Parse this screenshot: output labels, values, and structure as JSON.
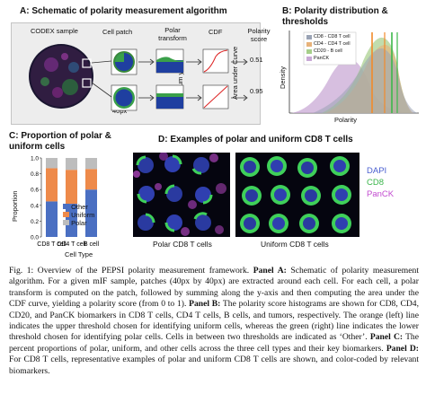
{
  "panel_a": {
    "title": "A: Schematic of polarity measurement algorithm",
    "codex_label": "CODEX sample",
    "cell_patch_label": "Cell patch",
    "polar_transform_label": "Polar transform",
    "cdf_label": "CDF",
    "polarity_score_label": "Polarity score",
    "sum_axis_label": "Sum y-axis",
    "area_label": "Area under Curve",
    "patch_size_label": "40px",
    "scores": [
      "0.51",
      "0.95"
    ]
  },
  "panel_b": {
    "title": "B: Polarity distribution & thresholds",
    "xlabel": "Polarity",
    "ylabel": "Density",
    "legend": [
      {
        "label": "CD8 - CD8 T cell",
        "color": "#9aa3b5"
      },
      {
        "label": "CD4 - CD4 T cell",
        "color": "#e7b27a"
      },
      {
        "label": "CD20 - B cell",
        "color": "#a6cf8a"
      },
      {
        "label": "PanCK",
        "color": "#c9a9d6"
      }
    ],
    "threshold_colors": {
      "upper": "#f28a2b",
      "lower": "#3cb84a"
    }
  },
  "panel_c": {
    "title": "C: Proportion of polar & uniform cells",
    "xlabel": "Cell Type",
    "ylabel": "Proportion",
    "yticks": [
      "0.0",
      "0.2",
      "0.4",
      "0.6",
      "0.8",
      "1.0"
    ],
    "legend": [
      "Other",
      "Uniform",
      "Polar"
    ],
    "chart_data": {
      "type": "bar",
      "categories": [
        "CD8 T cell",
        "CD4 T cell",
        "B cell"
      ],
      "series": [
        {
          "name": "Other",
          "values": [
            0.45,
            0.42,
            0.6
          ],
          "color": "#4a6fc2"
        },
        {
          "name": "Uniform",
          "values": [
            0.42,
            0.43,
            0.26
          ],
          "color": "#ee8a4a"
        },
        {
          "name": "Polar",
          "values": [
            0.13,
            0.15,
            0.14
          ],
          "color": "#bdbdbd"
        }
      ],
      "ylim": [
        0,
        1.0
      ],
      "stacked": true
    }
  },
  "panel_d": {
    "title": "D: Examples of polar and uniform CD8 T cells",
    "legend": [
      {
        "label": "DAPI",
        "color": "#4a5fd0"
      },
      {
        "label": "CD8",
        "color": "#39b54a"
      },
      {
        "label": "PanCK",
        "color": "#c24bd0"
      }
    ],
    "polar_label": "Polar CD8 T cells",
    "uniform_label": "Uniform CD8 T cells"
  },
  "caption": {
    "fig_label": "Fig. 1:",
    "intro": "  Overview of the PEPSI polarity measurement framework. ",
    "a_head": "Panel A:",
    "a_text": " Schematic of polarity measurement algorithm. For a given mIF sample, patches (40px by 40px) are extracted around each cell. For each cell, a polar transform is computed on the patch, followed by summing along the y-axis and then computing the area under the CDF curve, yielding a polarity score (from 0 to 1). ",
    "b_head": "Panel B:",
    "b_text": " The polarity score histograms are shown for CD8, CD4, CD20, and PanCK biomarkers in CD8 T cells, CD4 T cells, B cells, and tumors, respectively. The orange (left) line indicates the upper threshold chosen for identifying uniform cells, whereas the green (right) line indicates the lower threshold chosen for identifying polar cells. Cells in between two thresholds are indicated as ‘Other’. ",
    "c_head": "Panel C:",
    "c_text": " The percent proportions of polar, uniform, and other cells across the three cell types and their key biomarkers. ",
    "d_head": "Panel D:",
    "d_text": " For CD8 T cells, representative examples of polar and uniform CD8 T cells are shown, and color-coded by relevant biomarkers."
  }
}
